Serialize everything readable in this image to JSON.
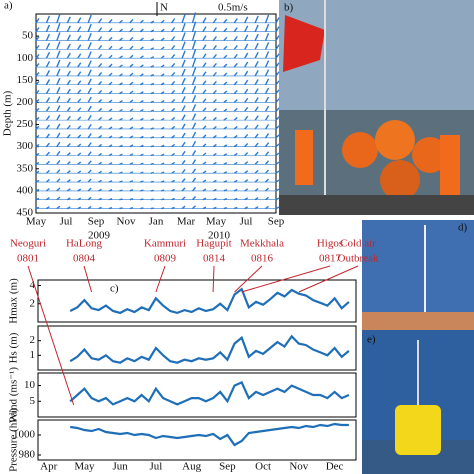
{
  "panel_a": {
    "label": "a)",
    "ylabel": "Depth (m)",
    "ylim": [
      0,
      450
    ],
    "yticks": [
      50,
      100,
      150,
      200,
      250,
      300,
      350,
      400,
      450
    ],
    "categories": [
      "May",
      "Jul",
      "Sep",
      "Nov",
      "Jan",
      "Mar",
      "May",
      "Jul",
      "Sep"
    ],
    "years": [
      "2009",
      "2010"
    ],
    "north": "N",
    "scale": "0.5m/s",
    "color": "#2a7bd1",
    "depths": [
      20,
      40,
      60,
      80,
      100,
      120,
      140,
      160,
      180,
      200,
      220,
      240,
      260,
      280,
      300,
      320,
      340,
      360,
      380,
      400,
      420,
      440
    ],
    "speed": [
      0.5,
      0.8,
      1.0,
      0.7,
      0.6,
      0.9,
      0.5,
      0.4,
      0.3,
      0.4,
      0.3,
      0.2,
      0.3,
      0.5,
      1.0,
      1.2,
      0.6,
      0.5,
      0.4,
      0.5,
      0.7,
      0.8,
      0.9,
      0.6
    ]
  },
  "photos": {
    "b": "b)",
    "d": "d)",
    "e": "e)"
  },
  "panel_c": {
    "label": "c)",
    "color": "#1f6fb8",
    "xlim": [
      -0.3,
      8.6
    ],
    "categories": [
      "Apr",
      "May",
      "Jun",
      "Jul",
      "Aug",
      "Sep",
      "Oct",
      "Nov",
      "Dec"
    ],
    "typhoons": [
      {
        "name": "Neoguri",
        "code": "0801"
      },
      {
        "name": "HaLong",
        "code": "0804"
      },
      {
        "name": "Kammuri",
        "code": "0809"
      },
      {
        "name": "Hagupit",
        "code": "0814"
      },
      {
        "name": "Mekkhala",
        "code": "0816"
      },
      {
        "name": "Higos",
        "code": "0817"
      },
      {
        "name": "Cold air",
        "code": "Outbreak"
      }
    ],
    "x": [
      0.6,
      0.8,
      1.0,
      1.2,
      1.4,
      1.6,
      1.8,
      2.0,
      2.2,
      2.4,
      2.6,
      2.8,
      3.0,
      3.2,
      3.4,
      3.6,
      3.8,
      4.0,
      4.2,
      4.4,
      4.6,
      4.8,
      5.0,
      5.2,
      5.4,
      5.6,
      5.8,
      6.0,
      6.2,
      6.4,
      6.6,
      6.8,
      7.0,
      7.2,
      7.4,
      7.6,
      7.8,
      8.0,
      8.2,
      8.4
    ],
    "panels": [
      {
        "ylabel": "Hmax (m)",
        "ylim": [
          0,
          4.6
        ],
        "yticks": [
          2,
          4
        ],
        "values": [
          1.2,
          1.6,
          2.4,
          1.5,
          1.3,
          1.8,
          1.2,
          1.0,
          1.4,
          1.1,
          1.6,
          1.3,
          2.6,
          1.8,
          1.2,
          1.0,
          1.3,
          1.1,
          1.5,
          1.2,
          1.4,
          2.0,
          1.3,
          3.0,
          3.6,
          1.6,
          2.2,
          1.9,
          2.5,
          3.2,
          2.8,
          3.5,
          3.1,
          2.9,
          2.4,
          2.1,
          1.8,
          2.6,
          1.5,
          2.2
        ]
      },
      {
        "ylabel": "Hs (m)",
        "ylim": [
          0,
          3
        ],
        "yticks": [
          1,
          2
        ],
        "values": [
          0.6,
          0.9,
          1.4,
          0.8,
          0.7,
          1.0,
          0.6,
          0.5,
          0.8,
          0.6,
          0.9,
          0.7,
          1.5,
          1.0,
          0.6,
          0.5,
          0.7,
          0.6,
          0.8,
          0.7,
          0.8,
          1.2,
          0.7,
          1.8,
          2.2,
          0.9,
          1.3,
          1.1,
          1.5,
          1.9,
          1.6,
          2.3,
          1.8,
          1.7,
          1.4,
          1.2,
          1.0,
          1.5,
          0.9,
          1.3
        ]
      },
      {
        "ylabel": "Wind (ms⁻¹)",
        "ylim": [
          0,
          14
        ],
        "yticks": [
          5,
          10
        ],
        "values": [
          5,
          7,
          9,
          6,
          5,
          6,
          4,
          5,
          6,
          5,
          7,
          5,
          9,
          6,
          5,
          4,
          5,
          6,
          6,
          5,
          6,
          8,
          5,
          10,
          11,
          6,
          8,
          7,
          8,
          9,
          8,
          10,
          9,
          8,
          7,
          7,
          6,
          8,
          6,
          7
        ]
      },
      {
        "ylabel": "Pressure (hPa)",
        "ylim": [
          975,
          1015
        ],
        "yticks": [
          980,
          1000
        ],
        "values": [
          1008,
          1007,
          1005,
          1004,
          1006,
          1003,
          1002,
          1001,
          1002,
          1000,
          1001,
          1000,
          997,
          999,
          998,
          997,
          998,
          999,
          1000,
          999,
          1001,
          996,
          1000,
          990,
          994,
          1002,
          1003,
          1004,
          1005,
          1006,
          1007,
          1008,
          1007,
          1009,
          1008,
          1010,
          1009,
          1011,
          1010,
          1010
        ]
      }
    ]
  }
}
